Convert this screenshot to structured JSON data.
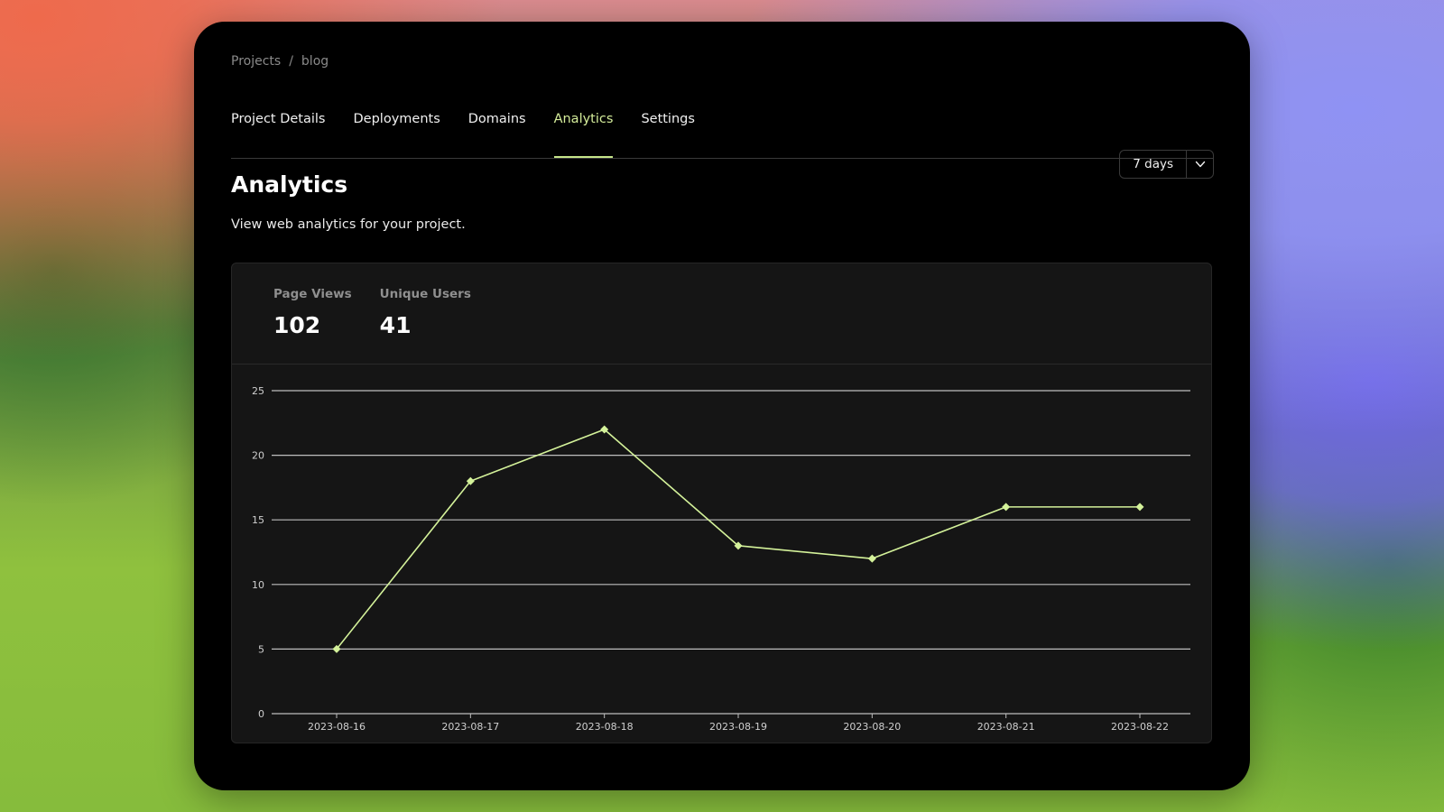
{
  "breadcrumb": {
    "items": [
      "Projects",
      "blog"
    ],
    "separator": "/"
  },
  "tabs": [
    {
      "label": "Project Details",
      "active": false
    },
    {
      "label": "Deployments",
      "active": false
    },
    {
      "label": "Domains",
      "active": false
    },
    {
      "label": "Analytics",
      "active": true
    },
    {
      "label": "Settings",
      "active": false
    }
  ],
  "page": {
    "title": "Analytics",
    "subtitle": "View web analytics for your project."
  },
  "range_select": {
    "value": "7 days",
    "icon": "chevron-down-icon"
  },
  "stats": [
    {
      "label": "Page Views",
      "value": "102"
    },
    {
      "label": "Unique Users",
      "value": "41"
    }
  ],
  "colors": {
    "accent": "#c6e68a",
    "line": "#d4f29a",
    "gridline": "#bdbdbd",
    "card_bg": "#151515"
  },
  "chart_data": {
    "type": "line",
    "x": [
      "2023-08-16",
      "2023-08-17",
      "2023-08-18",
      "2023-08-19",
      "2023-08-20",
      "2023-08-21",
      "2023-08-22"
    ],
    "series": [
      {
        "values": [
          5,
          18,
          22,
          13,
          12,
          16,
          16
        ]
      }
    ],
    "ylim": [
      0,
      25
    ],
    "yticks": [
      0,
      5,
      10,
      15,
      20,
      25
    ],
    "grid": true,
    "marker": "diamond"
  }
}
